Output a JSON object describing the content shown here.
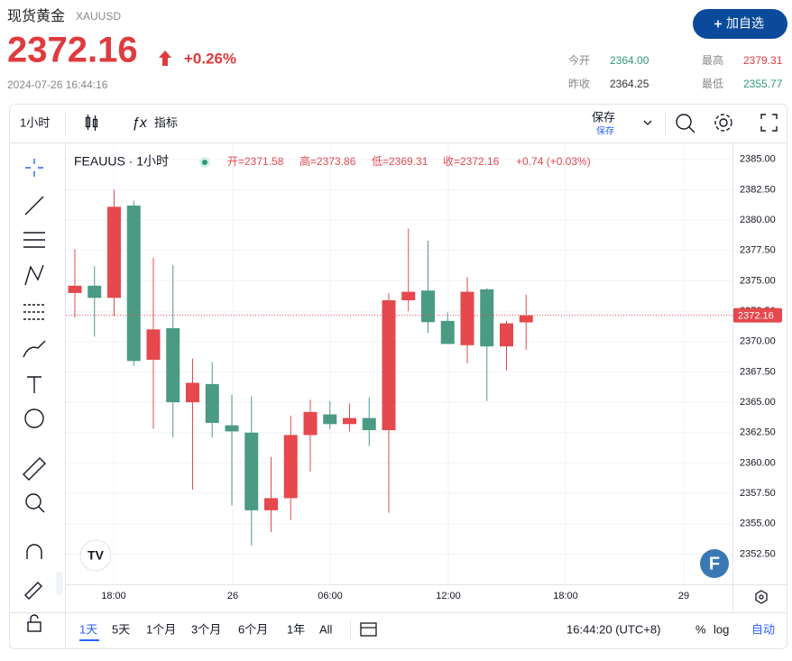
{
  "header": {
    "title": "现货黄金",
    "symbol": "XAUUSD",
    "price": "2372.16",
    "change": "+0.26%",
    "timestamp": "2024-07-26 16:44:16",
    "button": "加自选"
  },
  "stats": [
    {
      "label": "今开",
      "value": "2364.00"
    },
    {
      "label": "最高",
      "value": "2379.31"
    },
    {
      "label": "昨收",
      "value": "2364.25"
    },
    {
      "label": "最低",
      "value": "2355.77"
    }
  ],
  "toolbar": {
    "interval": "1小时",
    "indicators": "指标",
    "save": "保存",
    "save_sub": "保存"
  },
  "chart_data": {
    "type": "candlestick",
    "legend": {
      "symbol": "FEAUUS · 1小时",
      "ohlc": [
        "开=2371.58",
        "高=2373.86",
        "低=2369.31",
        "收=2372.16"
      ],
      "change": "+0.74 (+0.03%)"
    },
    "open": [
      2374.0,
      2374.6,
      2373.6,
      2381.2,
      2368.5,
      2371.1,
      2365.0,
      2366.5,
      2363.1,
      2362.5,
      2356.1,
      2357.1,
      2362.3,
      2364.0,
      2363.2,
      2363.7,
      2362.7,
      2373.4,
      2374.2,
      2371.7,
      2369.7,
      2374.3,
      2369.6,
      2371.58
    ],
    "high": [
      2377.6,
      2376.2,
      2382.5,
      2381.6,
      2376.9,
      2376.3,
      2368.6,
      2368.3,
      2365.6,
      2365.5,
      2360.5,
      2363.9,
      2365.2,
      2365.1,
      2364.9,
      2365.4,
      2374.0,
      2379.3,
      2378.3,
      2372.4,
      2375.3,
      2374.4,
      2371.7,
      2373.86
    ],
    "low": [
      2372.0,
      2370.4,
      2372.1,
      2368.0,
      2362.8,
      2362.1,
      2357.8,
      2362.1,
      2356.5,
      2353.2,
      2354.3,
      2355.3,
      2359.3,
      2362.8,
      2362.6,
      2361.4,
      2355.9,
      2372.5,
      2370.7,
      2369.8,
      2368.2,
      2365.1,
      2367.6,
      2369.31
    ],
    "close": [
      2374.6,
      2373.6,
      2381.1,
      2368.4,
      2371.0,
      2365.0,
      2366.6,
      2363.3,
      2362.6,
      2356.1,
      2357.1,
      2362.3,
      2364.2,
      2363.2,
      2363.7,
      2362.7,
      2373.4,
      2374.1,
      2371.6,
      2369.8,
      2374.1,
      2369.6,
      2371.5,
      2372.16
    ],
    "up_color": "#e5484d",
    "down_color": "#4a9a84",
    "last_price": 2372.16,
    "ylim": [
      2350,
      2386.25
    ],
    "yticks": [
      {
        "value": 2352.5,
        "label": "2352.50"
      },
      {
        "value": 2355,
        "label": "2355.00"
      },
      {
        "value": 2357.5,
        "label": "2357.50"
      },
      {
        "value": 2360,
        "label": "2360.00"
      },
      {
        "value": 2362.5,
        "label": "2362.50"
      },
      {
        "value": 2365,
        "label": "2365.00"
      },
      {
        "value": 2367.5,
        "label": "2367.50"
      },
      {
        "value": 2370,
        "label": "2370.00"
      },
      {
        "value": 2372.5,
        "label": "2372.50"
      },
      {
        "value": 2375,
        "label": "2375.00"
      },
      {
        "value": 2377.5,
        "label": "2377.50"
      },
      {
        "value": 2380,
        "label": "2380.00"
      },
      {
        "value": 2382.5,
        "label": "2382.50"
      },
      {
        "value": 2385,
        "label": "2385.00"
      }
    ],
    "xticks": [
      "18:00",
      "26",
      "06:00",
      "12:00",
      "18:00",
      "29"
    ],
    "grid": true
  },
  "footer": {
    "ranges": [
      "1天",
      "5天",
      "1个月",
      "3个月",
      "6个月",
      "1年",
      "All"
    ],
    "time": "16:44:20 (UTC+8)",
    "percent": "%",
    "log": "log",
    "auto": "自动"
  }
}
